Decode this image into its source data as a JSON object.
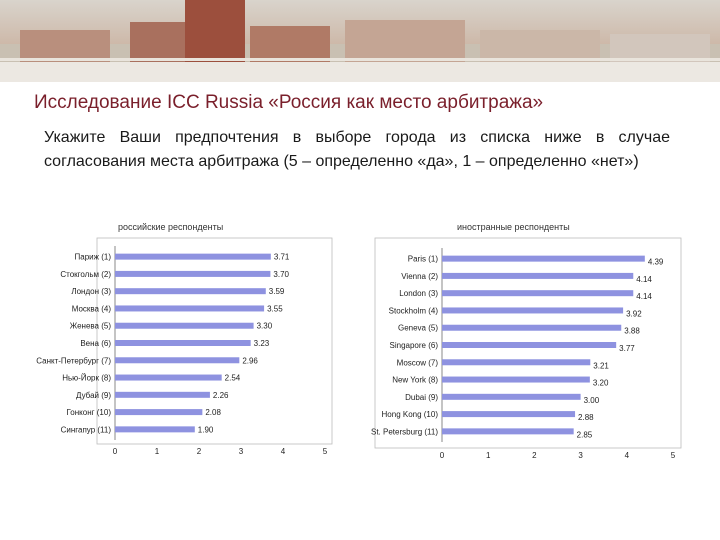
{
  "header": {
    "title": "Исследование ICC Russia «Россия как место арбитража»",
    "subtitle": "Укажите Ваши предпочтения в выборе города из списка ниже в случае согласования места арбитража (5 – определенно «да», 1 – определенно «нет»)"
  },
  "colors": {
    "bar": "#8e92e0",
    "title": "#7a1f2b",
    "axis": "#888888"
  },
  "chart_data": [
    {
      "type": "bar",
      "orientation": "horizontal",
      "title": "российские респонденты",
      "categories": [
        "Париж (1)",
        "Стокгольм (2)",
        "Лондон (3)",
        "Москва (4)",
        "Женева (5)",
        "Вена (6)",
        "Санкт-Петербург (7)",
        "Нью-Йорк (8)",
        "Дубай (9)",
        "Гонконг (10)",
        "Сингапур (11)"
      ],
      "values": [
        3.71,
        3.7,
        3.59,
        3.55,
        3.3,
        3.23,
        2.96,
        2.54,
        2.26,
        2.08,
        1.9
      ],
      "value_labels": [
        "3.71",
        "3.70",
        "3.59",
        "3.55",
        "3.30",
        "3.23",
        "2.96",
        "2.54",
        "2.26",
        "2.08",
        "1.90"
      ],
      "xlim": [
        0,
        5
      ],
      "ticks": [
        "0",
        "1",
        "2",
        "3",
        "4",
        "5"
      ],
      "grid": false
    },
    {
      "type": "bar",
      "orientation": "horizontal",
      "title": "иностранные респонденты",
      "categories": [
        "Paris (1)",
        "Vienna (2)",
        "London (3)",
        "Stockholm (4)",
        "Geneva (5)",
        "Singapore (6)",
        "Moscow (7)",
        "New York (8)",
        "Dubai (9)",
        "Hong Kong (10)",
        "St. Petersburg (11)"
      ],
      "values": [
        4.39,
        4.14,
        4.14,
        3.92,
        3.88,
        3.77,
        3.21,
        3.2,
        3.0,
        2.88,
        2.85
      ],
      "value_labels": [
        "4.39",
        "4.14",
        "4.14",
        "3.92",
        "3.88",
        "3.77",
        "3.21",
        "3.20",
        "3.00",
        "2.88",
        "2.85"
      ],
      "xlim": [
        0,
        5
      ],
      "ticks": [
        "0",
        "1",
        "2",
        "3",
        "4",
        "5"
      ],
      "grid": false
    }
  ]
}
